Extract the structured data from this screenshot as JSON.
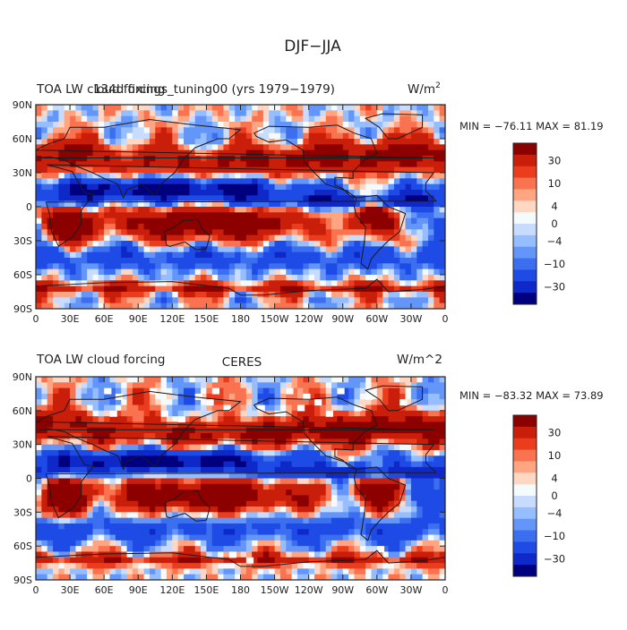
{
  "page_title": "DJF−JJA",
  "colors": {
    "scale": [
      "#00007f",
      "#0f28c8",
      "#1e4be6",
      "#3c6ef0",
      "#6496fa",
      "#96beff",
      "#c8dcff",
      "#f5fafa",
      "#ffd7c3",
      "#ffa582",
      "#fa7350",
      "#eb3c1e",
      "#c81e0a",
      "#8c0000"
    ],
    "land": "#1a1a1a",
    "frame": "#222222"
  },
  "chart_data": [
    {
      "type": "heatmap",
      "title_left": "TOA LW cloud forcing",
      "title_center": "134d fixings_tuning00 (yrs 1979−1979)",
      "units": "W/m",
      "units_sup": "2",
      "stats": "MIN = −76.11  MAX =  81.19",
      "min": -76.11,
      "max": 81.19,
      "xticks": [
        "0",
        "30E",
        "60E",
        "90E",
        "120E",
        "150E",
        "180",
        "150W",
        "120W",
        "90W",
        "60W",
        "30W",
        "0"
      ],
      "yticks": [
        "90N",
        "60N",
        "30N",
        "0",
        "30S",
        "60S",
        "90S"
      ],
      "xrange": [
        0,
        360
      ],
      "yrange": [
        -90,
        90
      ],
      "colorbar_levels": [
        "30",
        "10",
        "4",
        "0",
        "−4",
        "−10",
        "−30"
      ],
      "colorbar_values": [
        30,
        10,
        4,
        0,
        -4,
        -10,
        -30
      ],
      "missing_data": false
    },
    {
      "type": "heatmap",
      "title_left": "TOA LW cloud forcing",
      "title_center": "CERES",
      "units": "W/m^2",
      "units_sup": "",
      "stats": "MIN = −83.32  MAX =  73.89",
      "min": -83.32,
      "max": 73.89,
      "xticks": [
        "0",
        "30E",
        "60E",
        "90E",
        "120E",
        "150E",
        "180",
        "150W",
        "120W",
        "90W",
        "60W",
        "30W",
        "0"
      ],
      "yticks": [
        "90N",
        "60N",
        "30N",
        "0",
        "30S",
        "60S",
        "90S"
      ],
      "xrange": [
        0,
        360
      ],
      "yrange": [
        -90,
        90
      ],
      "colorbar_levels": [
        "30",
        "10",
        "4",
        "0",
        "−4",
        "−10",
        "−30"
      ],
      "colorbar_values": [
        30,
        10,
        4,
        0,
        -4,
        -10,
        -30
      ],
      "missing_data": true
    }
  ]
}
